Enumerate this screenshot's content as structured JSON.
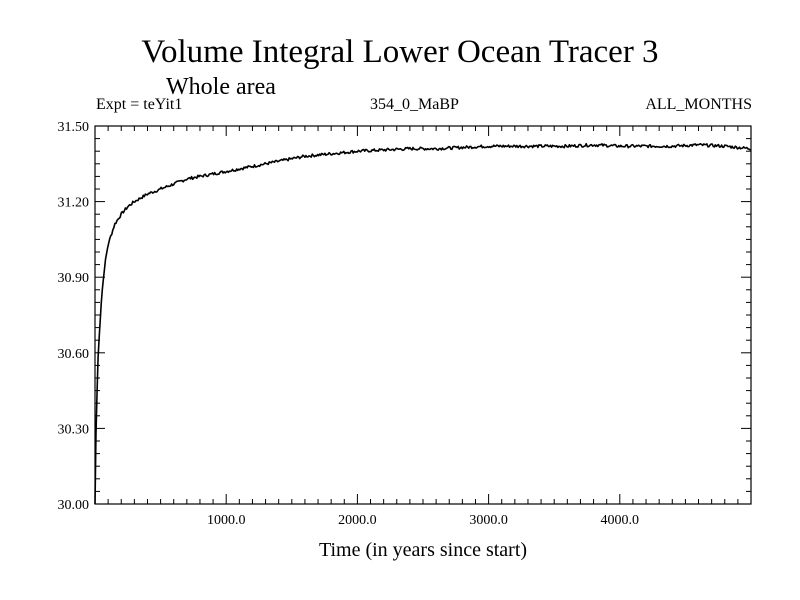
{
  "title": "Volume Integral Lower Ocean Tracer 3",
  "subtitle": "Whole area",
  "info": {
    "expt": "Expt = teYit1",
    "center": "354_0_MaBP",
    "right": "ALL_MONTHS"
  },
  "chart_data": {
    "type": "line",
    "title": "Volume Integral Lower Ocean Tracer 3",
    "subtitle": "Whole area",
    "xlabel": "Time (in years since start)",
    "ylabel": "",
    "xlim": [
      0,
      5000
    ],
    "ylim": [
      30.0,
      31.5
    ],
    "x_ticks": [
      1000,
      2000,
      3000,
      4000
    ],
    "x_tick_labels": [
      "1000.0",
      "2000.0",
      "3000.0",
      "4000.0"
    ],
    "y_ticks": [
      30.0,
      30.3,
      30.6,
      30.9,
      31.2,
      31.5
    ],
    "y_tick_labels": [
      "30.00",
      "30.30",
      "30.60",
      "30.90",
      "31.20",
      "31.50"
    ],
    "series": [
      {
        "name": "Volume Integral Lower Ocean Tracer 3",
        "x": [
          0,
          10,
          25,
          50,
          75,
          100,
          150,
          200,
          250,
          300,
          400,
          500,
          600,
          700,
          800,
          900,
          1000,
          1200,
          1400,
          1600,
          1800,
          2000,
          2200,
          2400,
          2600,
          2800,
          3000,
          3200,
          3400,
          3600,
          3800,
          4000,
          4200,
          4400,
          4600,
          4800,
          5000
        ],
        "values": [
          30.0,
          30.35,
          30.6,
          30.82,
          30.95,
          31.03,
          31.11,
          31.15,
          31.18,
          31.2,
          31.23,
          31.25,
          31.27,
          31.29,
          31.3,
          31.31,
          31.32,
          31.34,
          31.36,
          31.38,
          31.39,
          31.4,
          31.405,
          31.41,
          31.41,
          31.415,
          31.42,
          31.42,
          31.42,
          31.42,
          31.425,
          31.42,
          31.42,
          31.42,
          31.425,
          31.42,
          31.41
        ]
      }
    ],
    "grid": false
  }
}
